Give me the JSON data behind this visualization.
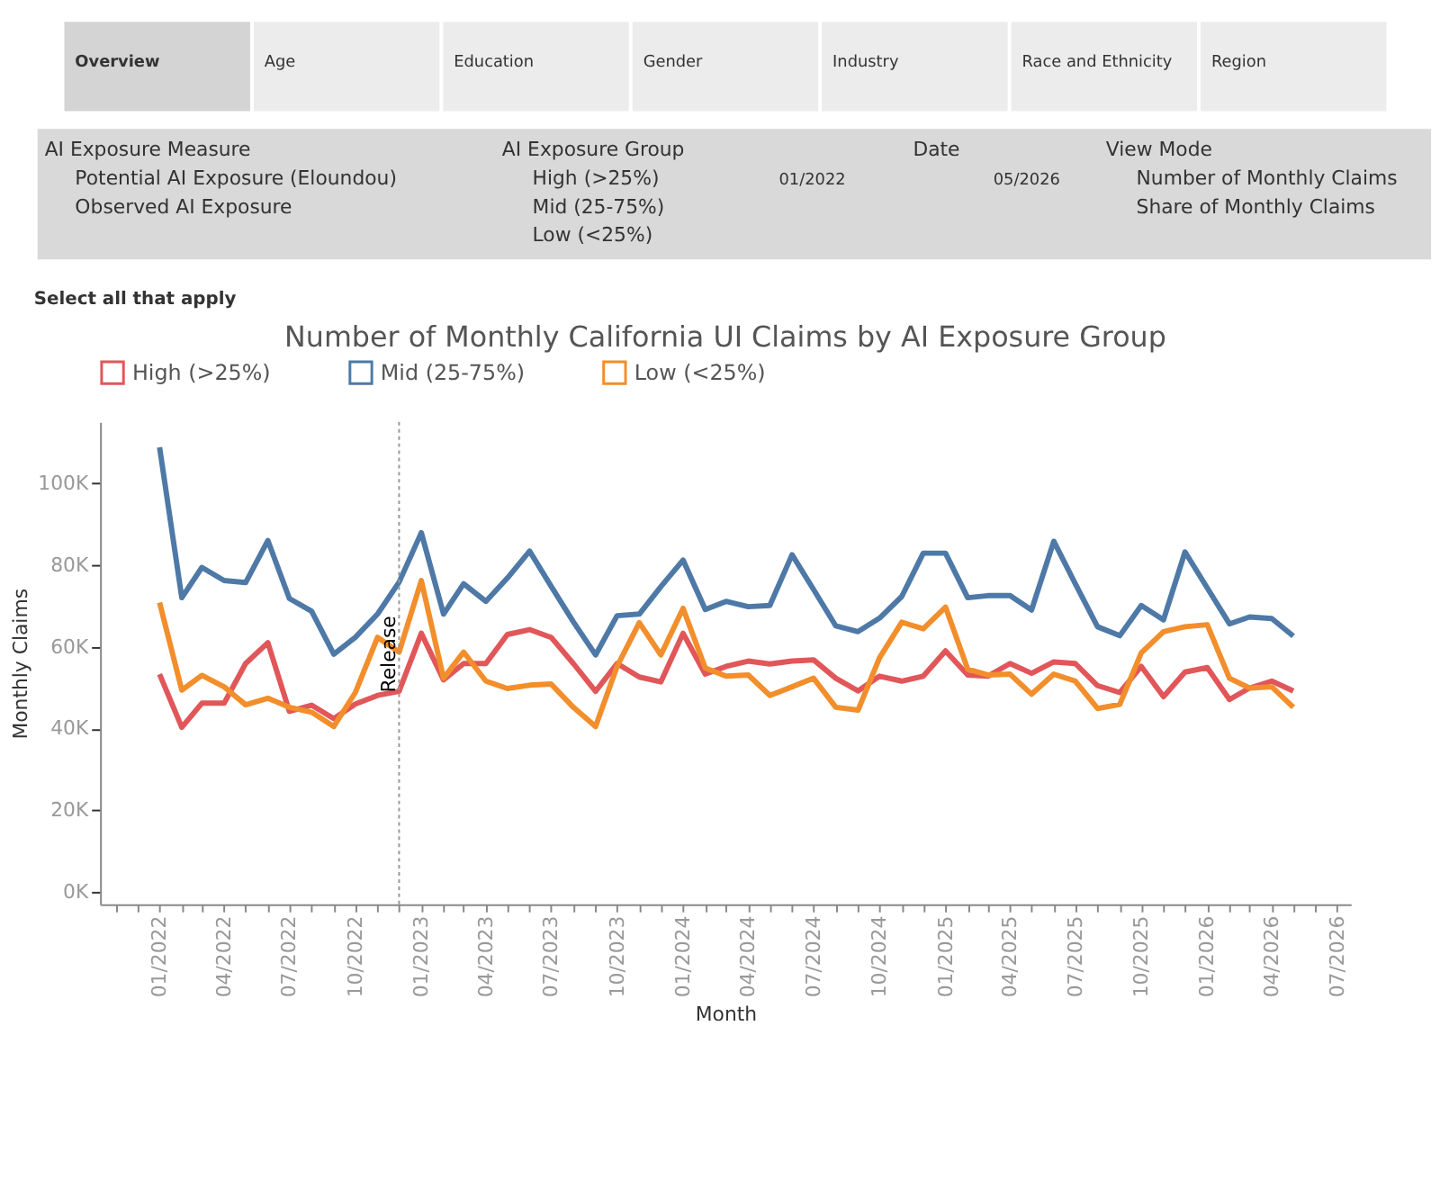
{
  "chart_data": {
    "type": "line",
    "title": "Number of Monthly California UI Claims by AI Exposure Group",
    "xlabel": "Month",
    "ylabel": "Monthly Claims",
    "x": [
      "2022-01",
      "2022-02",
      "2022-03",
      "2022-04",
      "2022-05",
      "2022-06",
      "2022-07",
      "2022-08",
      "2022-09",
      "2022-10",
      "2022-11",
      "2022-12",
      "2023-01",
      "2023-02",
      "2023-03",
      "2023-04",
      "2023-05",
      "2023-06",
      "2023-07",
      "2023-08",
      "2023-09",
      "2023-10",
      "2023-11",
      "2023-12",
      "2024-01",
      "2024-02",
      "2024-03",
      "2024-04",
      "2024-05",
      "2024-06",
      "2024-07",
      "2024-08",
      "2024-09",
      "2024-10",
      "2024-11",
      "2024-12",
      "2025-01",
      "2025-02",
      "2025-03",
      "2025-04",
      "2025-05",
      "2025-06",
      "2025-07",
      "2025-08",
      "2025-09",
      "2025-10",
      "2025-11",
      "2025-12",
      "2026-01",
      "2026-02",
      "2026-03",
      "2026-04",
      "2026-05"
    ],
    "series": [
      {
        "name": "High (>25%)",
        "color": "#e15759",
        "values": [
          53300,
          40300,
          46200,
          46200,
          55900,
          61000,
          44200,
          45700,
          42400,
          46000,
          48100,
          49100,
          63300,
          51900,
          55900,
          55900,
          63000,
          64200,
          62300,
          55900,
          49100,
          55900,
          52600,
          51400,
          63300,
          53300,
          55200,
          56500,
          55800,
          56500,
          56800,
          52300,
          49200,
          52800,
          51600,
          52800,
          59000,
          53100,
          52800,
          55900,
          53500,
          56300,
          55900,
          50500,
          48800,
          55200,
          47800,
          53800,
          54900,
          47100,
          49900,
          51600,
          49200
        ]
      },
      {
        "name": "Mid (25-75%)",
        "color": "#4e79a7",
        "values": [
          108800,
          72000,
          79400,
          76200,
          75700,
          86000,
          71800,
          68700,
          58200,
          62300,
          68000,
          75800,
          87900,
          68000,
          75400,
          71100,
          76800,
          83400,
          74800,
          66100,
          58000,
          67600,
          68000,
          74700,
          81200,
          69100,
          71100,
          69800,
          70100,
          82500,
          74000,
          65100,
          63700,
          67000,
          72300,
          82900,
          82900,
          72000,
          72500,
          72500,
          69000,
          85800,
          75400,
          64900,
          62700,
          70100,
          66600,
          83200,
          74400,
          65600,
          67300,
          66900,
          62600
        ]
      },
      {
        "name": "Low (<25%)",
        "color": "#f28e2b",
        "values": [
          70800,
          49400,
          53000,
          50200,
          45800,
          47400,
          45200,
          44000,
          40500,
          48800,
          62300,
          58700,
          76200,
          52300,
          58700,
          51600,
          49800,
          50600,
          50900,
          45200,
          40500,
          55200,
          65900,
          58000,
          69400,
          54800,
          52800,
          53100,
          48100,
          50200,
          52300,
          45200,
          44500,
          57300,
          66000,
          64400,
          69700,
          54500,
          53100,
          53300,
          48400,
          53300,
          51600,
          44900,
          45900,
          58500,
          63700,
          64900,
          65400,
          52300,
          49900,
          50200,
          45200
        ]
      }
    ],
    "xlim": [
      "2021-10-10",
      "2026-07-20"
    ],
    "xticks": [
      {
        "value": "2021-11",
        "label": null
      },
      {
        "value": "2021-12",
        "label": null
      },
      {
        "value": "2022-01",
        "label": "01/2022"
      },
      {
        "value": "2022-02",
        "label": null
      },
      {
        "value": "2022-03",
        "label": null
      },
      {
        "value": "2022-04",
        "label": "04/2022"
      },
      {
        "value": "2022-05",
        "label": null
      },
      {
        "value": "2022-06",
        "label": null
      },
      {
        "value": "2022-07",
        "label": "07/2022"
      },
      {
        "value": "2022-08",
        "label": null
      },
      {
        "value": "2022-09",
        "label": null
      },
      {
        "value": "2022-10",
        "label": "10/2022"
      },
      {
        "value": "2022-11",
        "label": null
      },
      {
        "value": "2022-12",
        "label": null
      },
      {
        "value": "2023-01",
        "label": "01/2023"
      },
      {
        "value": "2023-02",
        "label": null
      },
      {
        "value": "2023-03",
        "label": null
      },
      {
        "value": "2023-04",
        "label": "04/2023"
      },
      {
        "value": "2023-05",
        "label": null
      },
      {
        "value": "2023-06",
        "label": null
      },
      {
        "value": "2023-07",
        "label": "07/2023"
      },
      {
        "value": "2023-08",
        "label": null
      },
      {
        "value": "2023-09",
        "label": null
      },
      {
        "value": "2023-10",
        "label": "10/2023"
      },
      {
        "value": "2023-11",
        "label": null
      },
      {
        "value": "2023-12",
        "label": null
      },
      {
        "value": "2024-01",
        "label": "01/2024"
      },
      {
        "value": "2024-02",
        "label": null
      },
      {
        "value": "2024-03",
        "label": null
      },
      {
        "value": "2024-04",
        "label": "04/2024"
      },
      {
        "value": "2024-05",
        "label": null
      },
      {
        "value": "2024-06",
        "label": null
      },
      {
        "value": "2024-07",
        "label": "07/2024"
      },
      {
        "value": "2024-08",
        "label": null
      },
      {
        "value": "2024-09",
        "label": null
      },
      {
        "value": "2024-10",
        "label": "10/2024"
      },
      {
        "value": "2024-11",
        "label": null
      },
      {
        "value": "2024-12",
        "label": null
      },
      {
        "value": "2025-01",
        "label": "01/2025"
      },
      {
        "value": "2025-02",
        "label": null
      },
      {
        "value": "2025-03",
        "label": null
      },
      {
        "value": "2025-04",
        "label": "04/2025"
      },
      {
        "value": "2025-05",
        "label": null
      },
      {
        "value": "2025-06",
        "label": null
      },
      {
        "value": "2025-07",
        "label": "07/2025"
      },
      {
        "value": "2025-08",
        "label": null
      },
      {
        "value": "2025-09",
        "label": null
      },
      {
        "value": "2025-10",
        "label": "10/2025"
      },
      {
        "value": "2025-11",
        "label": null
      },
      {
        "value": "2025-12",
        "label": null
      },
      {
        "value": "2026-01",
        "label": "01/2026"
      },
      {
        "value": "2026-02",
        "label": null
      },
      {
        "value": "2026-03",
        "label": null
      },
      {
        "value": "2026-04",
        "label": "04/2026"
      },
      {
        "value": "2026-05",
        "label": null
      },
      {
        "value": "2026-06",
        "label": null
      },
      {
        "value": "2026-07",
        "label": "07/2026"
      }
    ],
    "ylim": [
      -3000,
      115000
    ],
    "yticks": [
      {
        "value": 0,
        "label": "0K"
      },
      {
        "value": 20000,
        "label": "20K"
      },
      {
        "value": 40000,
        "label": "40K"
      },
      {
        "value": 60000,
        "label": "60K"
      },
      {
        "value": 80000,
        "label": "80K"
      },
      {
        "value": 100000,
        "label": "100K"
      }
    ],
    "ref_lines": [
      {
        "axis": "x",
        "value": "2022-12",
        "label": "Release",
        "color": "#999999",
        "line_style": "dotted"
      }
    ],
    "grid": false,
    "legend": "top left",
    "marker": "none",
    "line_style": "solid",
    "annotations": [
      "Overview",
      "Age",
      "Education",
      "Gender",
      "Industry",
      "Race and Ethnicity",
      "Region",
      "AI Exposure Measure",
      "Potential AI Exposure (Eloundou)",
      "Observed AI Exposure",
      "AI Exposure Group",
      "High (>25%)",
      "Mid (25-75%)",
      "Low (<25%)",
      "Date",
      "01/2022",
      "05/2026",
      "View Mode",
      "Number of Monthly Claims",
      "Share of Monthly Claims",
      "Select all that apply"
    ]
  }
}
